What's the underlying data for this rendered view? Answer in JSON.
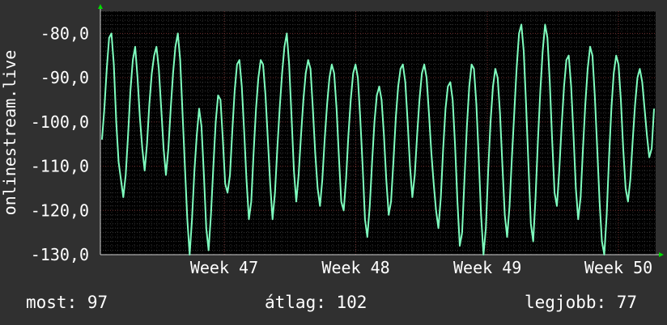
{
  "chart_data": {
    "type": "line",
    "ylabel": "onlinestream.live",
    "ylim": [
      -130,
      -75
    ],
    "y_ticks": [
      -80,
      -90,
      -100,
      -110,
      -120,
      -130
    ],
    "y_tick_labels": [
      "-80,0",
      "-90,0",
      "-100,0",
      "-110,0",
      "-120,0",
      "-130,0"
    ],
    "x_ticks": [
      {
        "label": "Week 47",
        "at": 0.223
      },
      {
        "label": "Week 48",
        "at": 0.46
      },
      {
        "label": "Week 49",
        "at": 0.697
      },
      {
        "label": "Week 50",
        "at": 0.933
      }
    ],
    "series_color": "#7fffbf",
    "grid": true,
    "values": [
      -104,
      -97,
      -88,
      -81,
      -80,
      -87,
      -100,
      -109,
      -113,
      -117,
      -112,
      -103,
      -93,
      -86,
      -83,
      -90,
      -99,
      -106,
      -111,
      -105,
      -96,
      -89,
      -85,
      -83,
      -88,
      -97,
      -106,
      -112,
      -106,
      -97,
      -89,
      -83,
      -80,
      -86,
      -98,
      -110,
      -122,
      -130,
      -122,
      -111,
      -103,
      -97,
      -101,
      -112,
      -124,
      -129,
      -121,
      -110,
      -100,
      -94,
      -95,
      -104,
      -114,
      -116,
      -112,
      -102,
      -93,
      -87,
      -86,
      -92,
      -102,
      -113,
      -122,
      -118,
      -107,
      -97,
      -90,
      -86,
      -87,
      -94,
      -104,
      -114,
      -122,
      -116,
      -106,
      -97,
      -89,
      -83,
      -80,
      -87,
      -99,
      -111,
      -118,
      -112,
      -103,
      -95,
      -89,
      -86,
      -88,
      -97,
      -107,
      -115,
      -119,
      -113,
      -104,
      -96,
      -90,
      -87,
      -89,
      -97,
      -108,
      -118,
      -120,
      -113,
      -103,
      -95,
      -89,
      -87,
      -90,
      -99,
      -110,
      -122,
      -126,
      -119,
      -109,
      -100,
      -94,
      -92,
      -95,
      -103,
      -113,
      -121,
      -118,
      -109,
      -99,
      -92,
      -88,
      -87,
      -91,
      -100,
      -110,
      -117,
      -112,
      -103,
      -95,
      -89,
      -87,
      -90,
      -98,
      -107,
      -114,
      -120,
      -124,
      -117,
      -106,
      -97,
      -92,
      -91,
      -95,
      -105,
      -118,
      -128,
      -125,
      -113,
      -101,
      -92,
      -87,
      -88,
      -96,
      -108,
      -121,
      -130,
      -124,
      -111,
      -100,
      -92,
      -88,
      -90,
      -98,
      -110,
      -121,
      -126,
      -119,
      -108,
      -98,
      -88,
      -80,
      -78,
      -84,
      -96,
      -110,
      -123,
      -127,
      -117,
      -104,
      -93,
      -84,
      -78,
      -81,
      -91,
      -104,
      -116,
      -119,
      -111,
      -101,
      -92,
      -86,
      -85,
      -92,
      -103,
      -115,
      -122,
      -117,
      -106,
      -96,
      -88,
      -83,
      -85,
      -94,
      -106,
      -118,
      -127,
      -130,
      -121,
      -108,
      -97,
      -89,
      -85,
      -87,
      -95,
      -106,
      -115,
      -118,
      -113,
      -104,
      -96,
      -90,
      -88,
      -91,
      -97,
      -103,
      -108,
      -106,
      -97
    ]
  },
  "footer": {
    "current": "most: 97",
    "average": "átlag: 102",
    "best": "legjobb: 77"
  }
}
